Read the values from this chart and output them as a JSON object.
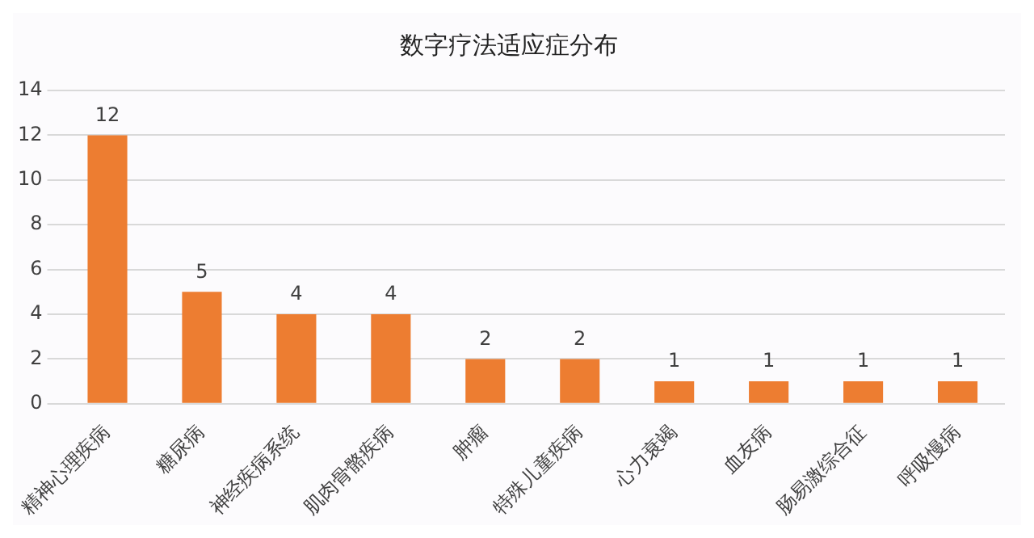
{
  "chart_data": {
    "type": "bar",
    "title": "数字疗法适应症分布",
    "categories": [
      "精神心理疾病",
      "糖尿病",
      "神经疾病系统",
      "肌肉骨骼疾病",
      "肿瘤",
      "特殊儿童疾病",
      "心力衰竭",
      "血友病",
      "肠易激综合征",
      "呼吸慢病"
    ],
    "values": [
      12,
      5,
      4,
      4,
      2,
      2,
      1,
      1,
      1,
      1
    ],
    "color": "#ed7d31",
    "ylim": [
      0,
      14
    ],
    "yticks": [
      0,
      2,
      4,
      6,
      8,
      10,
      12,
      14
    ],
    "grid": "y",
    "data_labels": true,
    "legend": false
  }
}
